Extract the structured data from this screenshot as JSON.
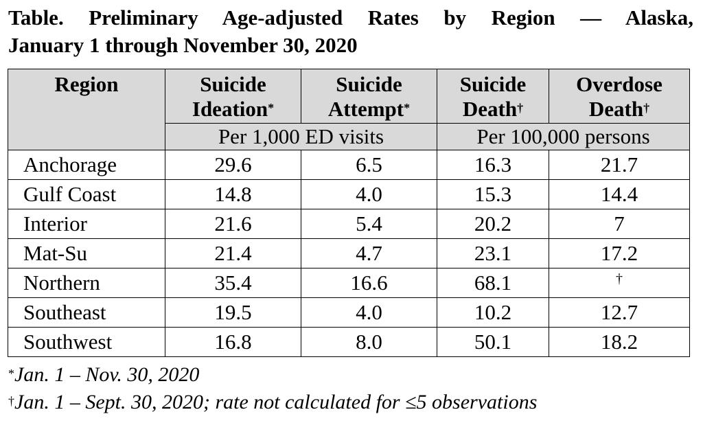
{
  "title": {
    "line1": "Table. Preliminary Age-adjusted Rates by Region — Alaska,",
    "line2": "January 1 through November 30, 2020"
  },
  "table": {
    "headers": {
      "region": "Region",
      "ideation_1": "Suicide",
      "ideation_2": "Ideation",
      "ideation_mark": "*",
      "attempt_1": "Suicide",
      "attempt_2": "Attempt",
      "attempt_mark": "*",
      "death_1": "Suicide",
      "death_2": "Death",
      "death_mark": "†",
      "overdose_1": "Overdose",
      "overdose_2": "Death",
      "overdose_mark": "†"
    },
    "units": {
      "ed": "Per 1,000 ED visits",
      "persons": "Per 100,000 persons"
    },
    "rows": [
      {
        "region": "Anchorage",
        "ideation": "29.6",
        "attempt": "6.5",
        "suicide_death": "16.3",
        "overdose_death": "21.7"
      },
      {
        "region": "Gulf Coast",
        "ideation": "14.8",
        "attempt": "4.0",
        "suicide_death": "15.3",
        "overdose_death": "14.4"
      },
      {
        "region": "Interior",
        "ideation": "21.6",
        "attempt": "5.4",
        "suicide_death": "20.2",
        "overdose_death": "7"
      },
      {
        "region": "Mat-Su",
        "ideation": "21.4",
        "attempt": "4.7",
        "suicide_death": "23.1",
        "overdose_death": "17.2"
      },
      {
        "region": "Northern",
        "ideation": "35.4",
        "attempt": "16.6",
        "suicide_death": "68.1",
        "overdose_death": "†"
      },
      {
        "region": "Southeast",
        "ideation": "19.5",
        "attempt": "4.0",
        "suicide_death": "10.2",
        "overdose_death": "12.7"
      },
      {
        "region": "Southwest",
        "ideation": "16.8",
        "attempt": "8.0",
        "suicide_death": "50.1",
        "overdose_death": "18.2"
      }
    ]
  },
  "footnotes": [
    {
      "mark": "*",
      "text": "Jan. 1 – Nov. 30, 2020"
    },
    {
      "mark": "†",
      "text": "Jan. 1 – Sept. 30, 2020; rate not calculated for ≤5 observations"
    }
  ]
}
